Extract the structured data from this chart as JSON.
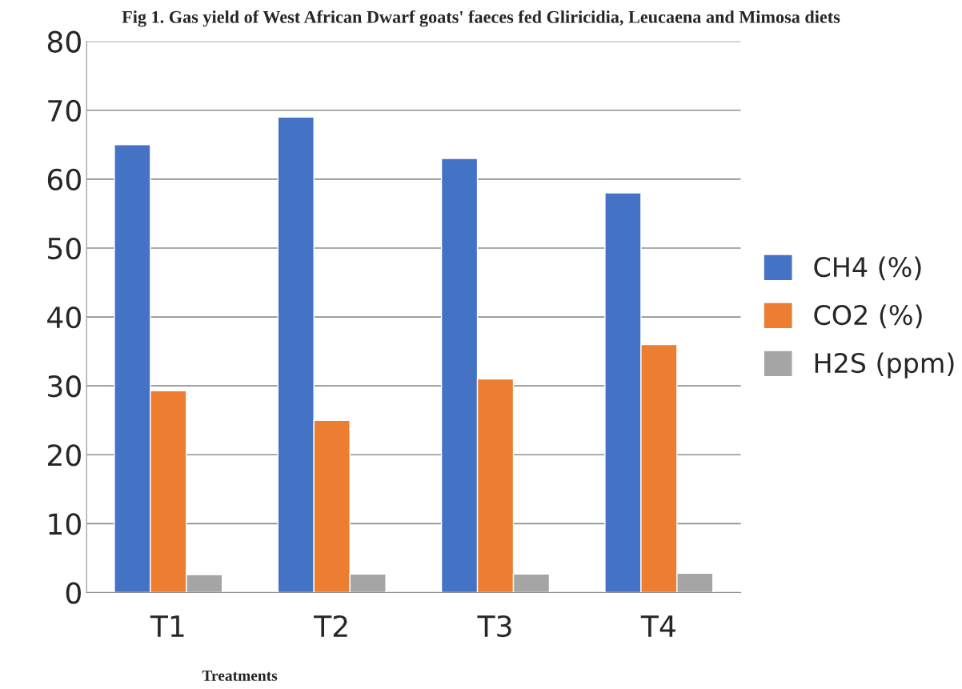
{
  "chart_data": {
    "type": "bar",
    "title": "Fig 1. Gas yield of West African Dwarf goats' faeces fed Gliricidia, Leucaena and Mimosa diets",
    "xlabel": "Treatments",
    "categories": [
      "T1",
      "T2",
      "T3",
      "T4"
    ],
    "series": [
      {
        "name": "CH4 (%)",
        "color": "#4472c4",
        "values": [
          65,
          69,
          63,
          58
        ]
      },
      {
        "name": "CO2 (%)",
        "color": "#ed7d31",
        "values": [
          29.3,
          25,
          31,
          36
        ]
      },
      {
        "name": "H2S (ppm)",
        "color": "#a5a5a5",
        "values": [
          2.6,
          2.7,
          2.7,
          2.8
        ]
      }
    ],
    "ylim": [
      0,
      80
    ],
    "yticks": [
      0,
      10,
      20,
      30,
      40,
      50,
      60,
      70,
      80
    ],
    "grid": "y",
    "legend": "right"
  }
}
